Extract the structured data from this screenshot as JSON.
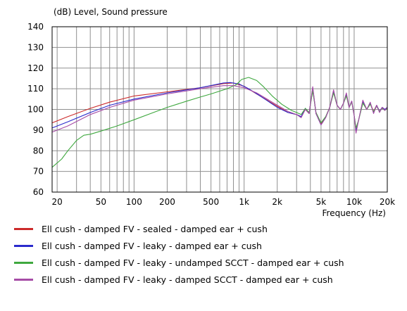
{
  "chart_data": {
    "type": "line",
    "title": "",
    "ylabel": "(dB)  Level, Sound pressure",
    "xlabel": "Frequency  (Hz)",
    "x_scale": "log",
    "xlim": [
      18,
      20000
    ],
    "ylim": [
      60,
      140
    ],
    "grid": true,
    "legend_position": "bottom",
    "x_ticks": [
      20,
      50,
      100,
      200,
      500,
      1000,
      2000,
      5000,
      10000,
      20000
    ],
    "x_tick_labels": [
      "20",
      "50",
      "100",
      "200",
      "500",
      "1k",
      "2k",
      "5k",
      "10k",
      "20k"
    ],
    "y_ticks": [
      60,
      70,
      80,
      90,
      100,
      110,
      120,
      130,
      140
    ],
    "y_tick_labels": [
      "60",
      "70",
      "80",
      "90",
      "100",
      "110",
      "120",
      "130",
      "140"
    ],
    "series": [
      {
        "name": "Ell cush - damped FV - sealed - damped ear + cush",
        "color": "#cc2a2a",
        "points": [
          [
            18,
            93.5
          ],
          [
            25,
            96.5
          ],
          [
            40,
            100.5
          ],
          [
            60,
            103.5
          ],
          [
            100,
            106.5
          ],
          [
            200,
            108.5
          ],
          [
            400,
            110.5
          ],
          [
            650,
            112.5
          ],
          [
            800,
            112.8
          ],
          [
            1000,
            111.2
          ],
          [
            1300,
            107.5
          ],
          [
            1800,
            103
          ],
          [
            2500,
            98.5
          ],
          [
            3000,
            97.5
          ],
          [
            3300,
            96.5
          ],
          [
            3600,
            100
          ],
          [
            3900,
            98
          ],
          [
            4200,
            110
          ],
          [
            4500,
            98
          ],
          [
            5000,
            93
          ],
          [
            5500,
            96
          ],
          [
            6000,
            101
          ],
          [
            6500,
            108.5
          ],
          [
            7000,
            102
          ],
          [
            7500,
            100
          ],
          [
            8000,
            103
          ],
          [
            8500,
            107
          ],
          [
            9000,
            101
          ],
          [
            9500,
            104
          ],
          [
            10000,
            97
          ],
          [
            10400,
            90
          ],
          [
            11000,
            95
          ],
          [
            12000,
            104
          ],
          [
            13000,
            100
          ],
          [
            14000,
            103
          ],
          [
            15000,
            99
          ],
          [
            16000,
            102
          ],
          [
            17000,
            99
          ],
          [
            18000,
            101
          ],
          [
            19000,
            100
          ],
          [
            20000,
            101
          ]
        ]
      },
      {
        "name": "Ell cush - damped FV - leaky - damped ear + cush",
        "color": "#2a2acc",
        "points": [
          [
            18,
            91
          ],
          [
            25,
            94
          ],
          [
            40,
            98.5
          ],
          [
            60,
            102
          ],
          [
            100,
            105
          ],
          [
            200,
            108
          ],
          [
            400,
            110.5
          ],
          [
            650,
            112.8
          ],
          [
            750,
            113
          ],
          [
            900,
            112.3
          ],
          [
            1100,
            110
          ],
          [
            1400,
            106.5
          ],
          [
            2000,
            101
          ],
          [
            2500,
            98.5
          ],
          [
            3000,
            97.5
          ],
          [
            3300,
            96.5
          ],
          [
            3600,
            100.5
          ],
          [
            3900,
            98
          ],
          [
            4200,
            110.5
          ],
          [
            4500,
            98
          ],
          [
            5000,
            92.5
          ],
          [
            5500,
            96
          ],
          [
            6000,
            101
          ],
          [
            6500,
            109
          ],
          [
            7000,
            102
          ],
          [
            7500,
            100
          ],
          [
            8000,
            103
          ],
          [
            8500,
            107.5
          ],
          [
            9000,
            101
          ],
          [
            9500,
            104
          ],
          [
            10000,
            97
          ],
          [
            10400,
            89.5
          ],
          [
            11000,
            95
          ],
          [
            12000,
            104
          ],
          [
            13000,
            100
          ],
          [
            14000,
            103
          ],
          [
            15000,
            98.5
          ],
          [
            16000,
            102
          ],
          [
            17000,
            99
          ],
          [
            18000,
            101
          ],
          [
            19000,
            100
          ],
          [
            20000,
            101
          ]
        ]
      },
      {
        "name": "Ell cush - damped FV - leaky - undamped SCCT - damped ear + cush",
        "color": "#3fa83f",
        "points": [
          [
            18,
            72
          ],
          [
            22,
            76
          ],
          [
            25,
            80
          ],
          [
            30,
            85
          ],
          [
            35,
            87.5
          ],
          [
            40,
            88
          ],
          [
            50,
            89.5
          ],
          [
            70,
            92
          ],
          [
            100,
            95
          ],
          [
            150,
            98.5
          ],
          [
            200,
            101
          ],
          [
            300,
            104
          ],
          [
            400,
            106
          ],
          [
            500,
            107.5
          ],
          [
            700,
            110
          ],
          [
            850,
            112
          ],
          [
            950,
            114.5
          ],
          [
            1100,
            115.5
          ],
          [
            1300,
            114
          ],
          [
            1500,
            111
          ],
          [
            1800,
            106.5
          ],
          [
            2200,
            102.5
          ],
          [
            2700,
            99.5
          ],
          [
            3000,
            98.5
          ],
          [
            3300,
            97.5
          ],
          [
            3600,
            100.5
          ],
          [
            3900,
            98.5
          ],
          [
            4200,
            109
          ],
          [
            4500,
            98.5
          ],
          [
            5000,
            93.5
          ],
          [
            5500,
            96.5
          ],
          [
            6000,
            101
          ],
          [
            6500,
            108
          ],
          [
            7000,
            102
          ],
          [
            7500,
            100
          ],
          [
            8000,
            103
          ],
          [
            8500,
            106.5
          ],
          [
            9000,
            101
          ],
          [
            9500,
            103.5
          ],
          [
            10000,
            97
          ],
          [
            10400,
            91
          ],
          [
            11000,
            95
          ],
          [
            12000,
            103
          ],
          [
            13000,
            100
          ],
          [
            14000,
            102.5
          ],
          [
            15000,
            99
          ],
          [
            16000,
            101.5
          ],
          [
            17000,
            99
          ],
          [
            18000,
            100.5
          ],
          [
            19000,
            99.5
          ],
          [
            20000,
            100.5
          ]
        ]
      },
      {
        "name": "Ell cush - damped FV - leaky - damped SCCT - damped ear + cush",
        "color": "#a64ca6",
        "points": [
          [
            18,
            89
          ],
          [
            25,
            92
          ],
          [
            40,
            97.5
          ],
          [
            60,
            101
          ],
          [
            100,
            104.5
          ],
          [
            200,
            107.5
          ],
          [
            400,
            110
          ],
          [
            650,
            111.5
          ],
          [
            800,
            111.5
          ],
          [
            1000,
            110.5
          ],
          [
            1300,
            108
          ],
          [
            1800,
            103.5
          ],
          [
            2500,
            99
          ],
          [
            3000,
            97.5
          ],
          [
            3300,
            96
          ],
          [
            3600,
            100
          ],
          [
            3900,
            98
          ],
          [
            4200,
            111
          ],
          [
            4500,
            98
          ],
          [
            5000,
            92.5
          ],
          [
            5500,
            96
          ],
          [
            6000,
            101
          ],
          [
            6500,
            109.5
          ],
          [
            7000,
            102
          ],
          [
            7500,
            100
          ],
          [
            8000,
            103
          ],
          [
            8500,
            108
          ],
          [
            9000,
            101
          ],
          [
            9500,
            104
          ],
          [
            10000,
            97
          ],
          [
            10400,
            88.5
          ],
          [
            11000,
            95
          ],
          [
            12000,
            104.5
          ],
          [
            13000,
            100
          ],
          [
            14000,
            103.5
          ],
          [
            15000,
            98
          ],
          [
            16000,
            102
          ],
          [
            17000,
            98.5
          ],
          [
            18000,
            101
          ],
          [
            19000,
            99.5
          ],
          [
            20000,
            101
          ]
        ]
      }
    ]
  }
}
